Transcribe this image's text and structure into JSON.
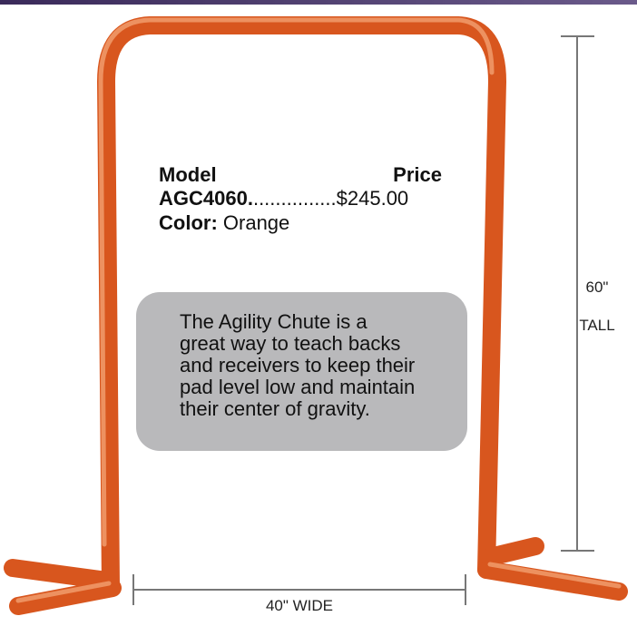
{
  "product": {
    "model_label": "Model",
    "price_label": "Price",
    "model": "AGC4060.",
    "leader": "...............",
    "price": "$245.00",
    "color_label": "Color:",
    "color": "Orange"
  },
  "description": {
    "lines": [
      "The Agility Chute is a",
      "great way to teach backs",
      "and receivers to keep their",
      "pad level low and maintain",
      "their center of gravity."
    ]
  },
  "dimensions": {
    "height": "60\"",
    "height_unit": "TALL",
    "width": "40\" WIDE"
  }
}
